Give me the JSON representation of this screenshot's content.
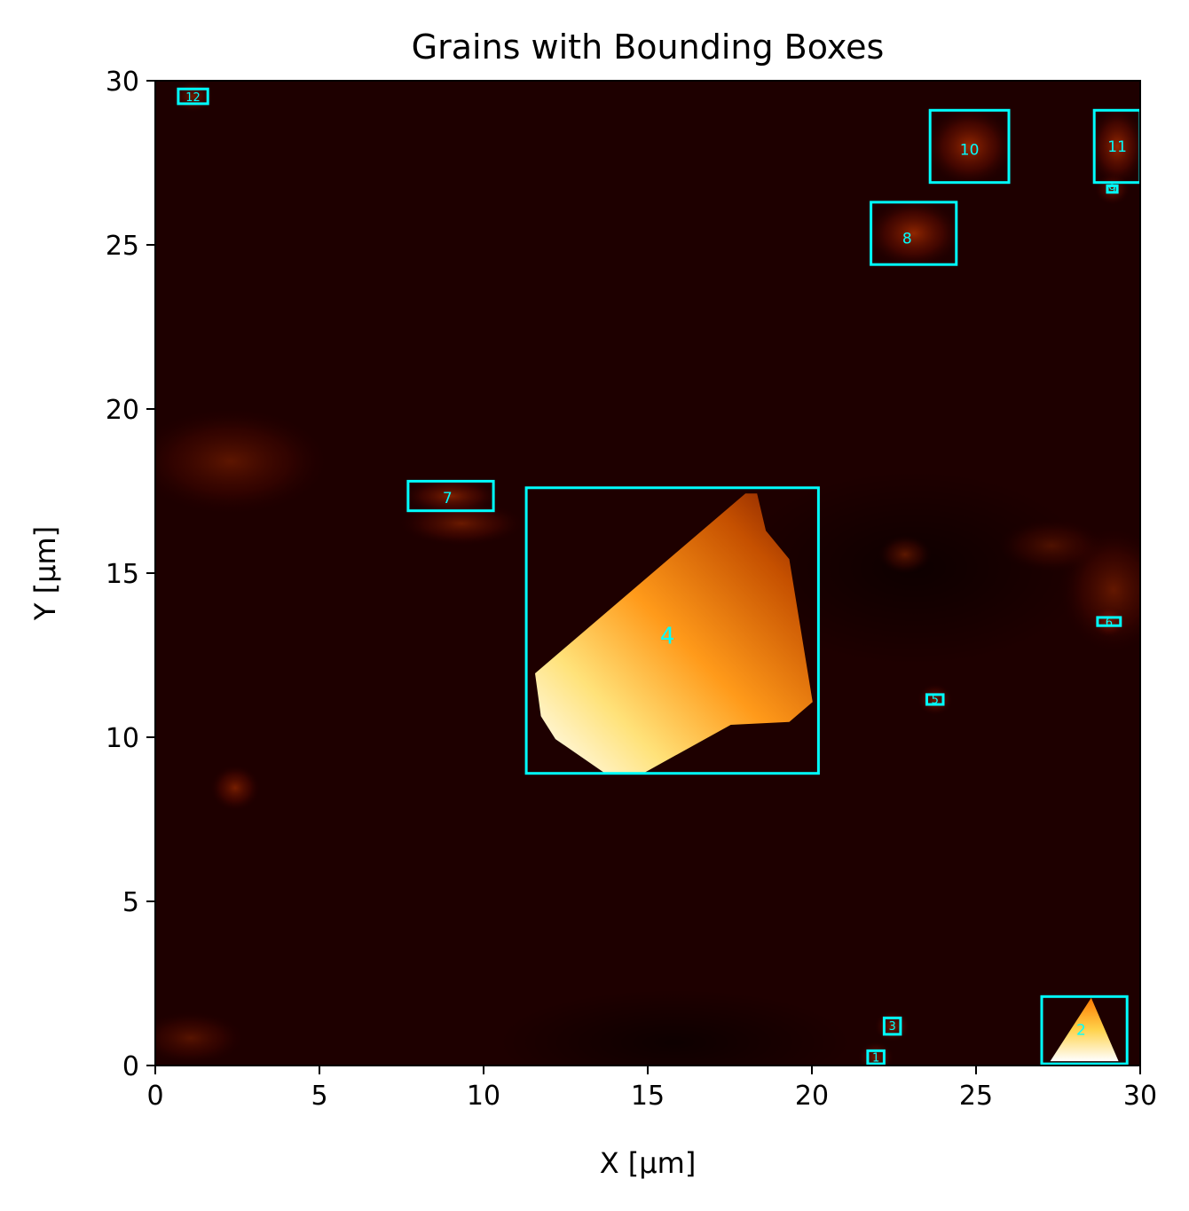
{
  "chart_data": {
    "type": "heatmap",
    "title": "Grains with Bounding Boxes",
    "xlabel": "X [μm]",
    "ylabel": "Y [μm]",
    "xlim": [
      0,
      30
    ],
    "ylim": [
      0,
      30
    ],
    "xticks": [
      "0",
      "5",
      "10",
      "15",
      "20",
      "25",
      "30"
    ],
    "yticks": [
      "0",
      "5",
      "10",
      "15",
      "20",
      "25",
      "30"
    ],
    "xtick_values": [
      0,
      5,
      10,
      15,
      20,
      25,
      30
    ],
    "ytick_values": [
      0,
      5,
      10,
      15,
      20,
      25,
      30
    ],
    "colormap": "afmhot",
    "box_color": "#00ffff",
    "background_color": "#1e0000",
    "grains": [
      {
        "label": "1",
        "x0": 21.7,
        "x1": 22.2,
        "y0": 0.05,
        "y1": 0.45,
        "cx": 21.95,
        "cy": 0.25,
        "peak": 0.25
      },
      {
        "label": "2",
        "x0": 27.0,
        "x1": 29.6,
        "y0": 0.05,
        "y1": 2.1,
        "cx": 28.2,
        "cy": 1.1,
        "peak": 1.0
      },
      {
        "label": "3",
        "x0": 22.2,
        "x1": 22.7,
        "y0": 0.95,
        "y1": 1.45,
        "cx": 22.45,
        "cy": 1.2,
        "peak": 0.3
      },
      {
        "label": "4",
        "x0": 11.3,
        "x1": 20.2,
        "y0": 8.9,
        "y1": 17.6,
        "cx": 15.6,
        "cy": 13.1,
        "peak": 1.0
      },
      {
        "label": "5",
        "x0": 23.5,
        "x1": 24.0,
        "y0": 11.0,
        "y1": 11.3,
        "cx": 23.75,
        "cy": 11.15,
        "peak": 0.25
      },
      {
        "label": "6",
        "x0": 28.7,
        "x1": 29.4,
        "y0": 13.4,
        "y1": 13.65,
        "cx": 29.05,
        "cy": 13.5,
        "peak": 0.22
      },
      {
        "label": "7",
        "x0": 7.7,
        "x1": 10.3,
        "y0": 16.9,
        "y1": 17.8,
        "cx": 8.9,
        "cy": 17.3,
        "peak": 0.35
      },
      {
        "label": "8",
        "x0": 21.8,
        "x1": 24.4,
        "y0": 24.4,
        "y1": 26.3,
        "cx": 22.9,
        "cy": 25.2,
        "peak": 0.5
      },
      {
        "label": "9",
        "x0": 29.0,
        "x1": 29.3,
        "y0": 26.6,
        "y1": 26.8,
        "cx": 29.15,
        "cy": 26.7,
        "peak": 0.2
      },
      {
        "label": "10",
        "x0": 23.6,
        "x1": 26.0,
        "y0": 26.9,
        "y1": 29.1,
        "cx": 24.8,
        "cy": 27.9,
        "peak": 0.55
      },
      {
        "label": "11",
        "x0": 28.6,
        "x1": 30.0,
        "y0": 26.9,
        "y1": 29.1,
        "cx": 29.3,
        "cy": 28.0,
        "peak": 0.55
      },
      {
        "label": "12",
        "x0": 0.7,
        "x1": 1.6,
        "y0": 29.3,
        "y1": 29.75,
        "cx": 1.15,
        "cy": 29.5,
        "peak": 0.22
      }
    ]
  }
}
